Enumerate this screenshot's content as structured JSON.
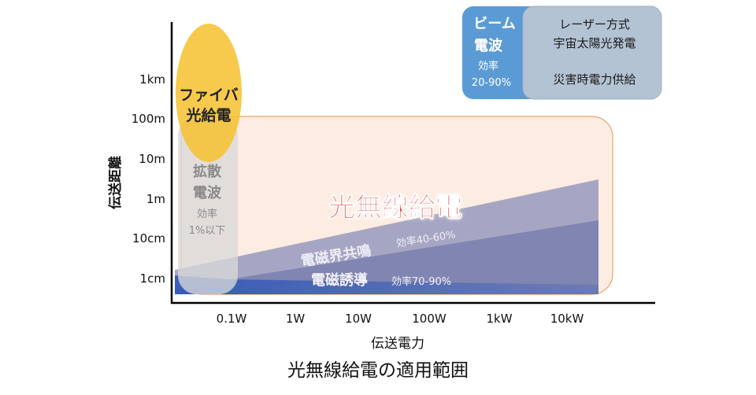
{
  "chart_data": {
    "type": "area",
    "title": "光無線給電の適用範囲",
    "xlabel": "伝送電力",
    "ylabel": "伝送距離",
    "x_ticks": [
      "0.1W",
      "1W",
      "10W",
      "100W",
      "1kW",
      "10kW"
    ],
    "y_ticks": [
      "1cm",
      "10cm",
      "1m",
      "10m",
      "100m",
      "1km"
    ],
    "regions": [
      {
        "id": "fiber",
        "name": "ファイバ光給電",
        "lines": [
          "ファイバ",
          "光給電"
        ],
        "color": "#f5c242"
      },
      {
        "id": "optical",
        "name": "光無線給電",
        "color": "#f5b88a"
      },
      {
        "id": "diffuse",
        "name": "拡散電波",
        "lines": [
          "拡散",
          "電波"
        ],
        "efficiency": [
          "効率",
          "1%以下"
        ],
        "color": "#d0d0d0"
      },
      {
        "id": "resonance",
        "name": "電磁界共鳴",
        "efficiency": "効率40-60%",
        "color": "#8f93b8"
      },
      {
        "id": "induction",
        "name": "電磁誘導",
        "efficiency": "効率70-90%",
        "color": "#7b80b0"
      },
      {
        "id": "beam",
        "name": "ビーム電波",
        "lines": [
          "ビーム",
          "電波"
        ],
        "efficiency": [
          "効率",
          "20-90%"
        ],
        "color": "#5b9bd5"
      },
      {
        "id": "laser",
        "lines": [
          "レーザー方式",
          "宇宙太陽光発電",
          "災害時電力供給"
        ],
        "color": "#adbdcd"
      }
    ]
  }
}
